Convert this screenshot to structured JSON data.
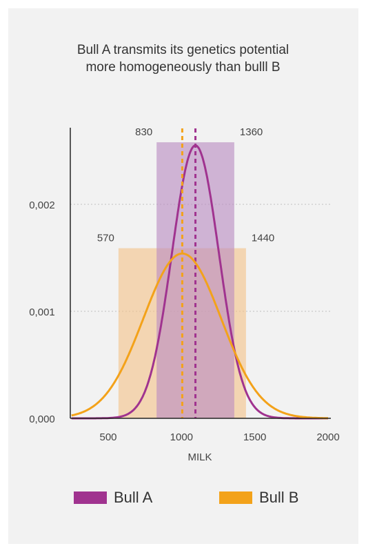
{
  "chart_data": {
    "type": "area",
    "title": [
      "Bull A transmits its genetics potential",
      "more homogeneously than bulll B"
    ],
    "xlabel": "MILK",
    "ylabel": "",
    "xlim": [
      250,
      2000
    ],
    "ylim": [
      0,
      0.0026
    ],
    "x_ticks": [
      {
        "value": 500,
        "label": "500"
      },
      {
        "value": 1000,
        "label": "1000"
      },
      {
        "value": 1500,
        "label": "1500"
      },
      {
        "value": 2000,
        "label": "2000"
      }
    ],
    "y_ticks": [
      {
        "value": 0,
        "label": "0,000"
      },
      {
        "value": 0.001,
        "label": "0,001"
      },
      {
        "value": 0.002,
        "label": "0,002"
      }
    ],
    "grid": "horizontal dotted",
    "legend_position": "bottom",
    "series": [
      {
        "name": "Bull A",
        "color": "#a0338f",
        "band_color": "#b98dc1",
        "mean": 1095,
        "sd": 160,
        "peak": 0.00255,
        "range": [
          830,
          1360
        ],
        "range_labels": [
          "830",
          "1360"
        ],
        "band_height": 0.00258
      },
      {
        "name": "Bull B",
        "color": "#f3a21a",
        "band_color": "#f4c48a",
        "mean": 1005,
        "sd": 265,
        "peak": 0.00154,
        "range": [
          570,
          1440
        ],
        "range_labels": [
          "570",
          "1440"
        ],
        "band_height": 0.00159
      }
    ]
  },
  "legend": [
    {
      "label": "Bull A",
      "color": "#a0338f"
    },
    {
      "label": "Bull B",
      "color": "#f3a21a"
    }
  ]
}
